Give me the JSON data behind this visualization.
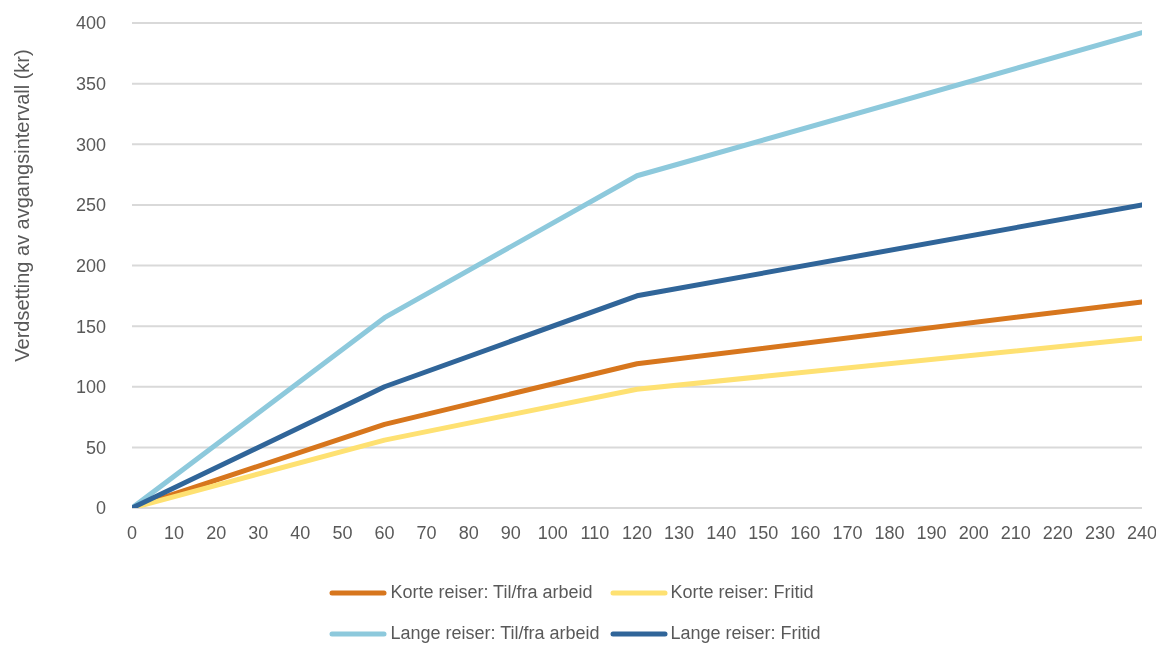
{
  "chart_data": {
    "type": "line",
    "ylabel": "Verdsetting av avgangsintervall (kr)",
    "x": [
      0,
      60,
      120,
      240
    ],
    "series": [
      {
        "name": "Korte reiser: Til/fra arbeid",
        "color": "#d7761d",
        "values": [
          0,
          69,
          119,
          170
        ]
      },
      {
        "name": "Korte reiser: Fritid",
        "color": "#fee172",
        "values": [
          0,
          56,
          98,
          140
        ]
      },
      {
        "name": "Lange reiser: Til/fra arbeid",
        "color": "#8dc9dc",
        "values": [
          0,
          157,
          274,
          392
        ]
      },
      {
        "name": "Lange reiser: Fritid",
        "color": "#306599",
        "values": [
          0,
          100,
          175,
          250
        ]
      }
    ],
    "xlim": [
      0,
      240
    ],
    "xticks": [
      0,
      10,
      20,
      30,
      40,
      50,
      60,
      70,
      80,
      90,
      100,
      110,
      120,
      130,
      140,
      150,
      160,
      170,
      180,
      190,
      200,
      210,
      220,
      230,
      240
    ],
    "ylim": [
      0,
      400
    ],
    "yticks": [
      0,
      50,
      100,
      150,
      200,
      250,
      300,
      350,
      400
    ],
    "grid": "y",
    "legend": "bottom"
  }
}
